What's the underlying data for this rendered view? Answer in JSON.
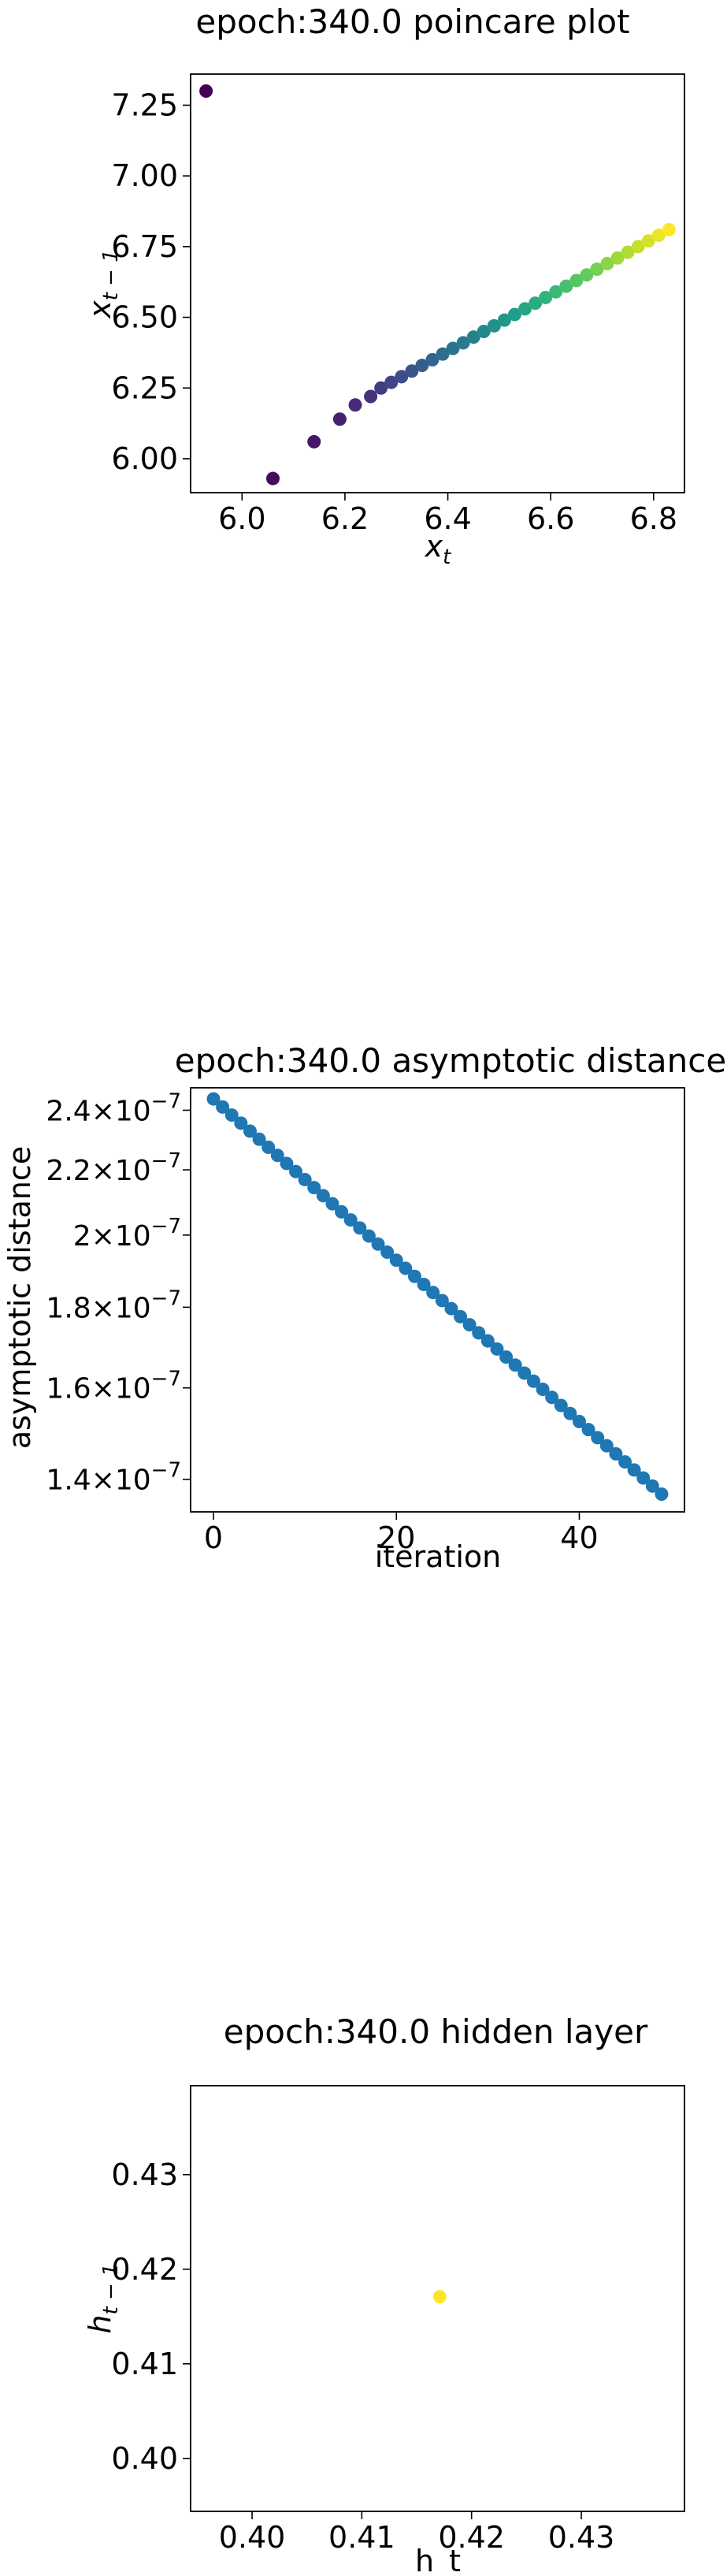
{
  "chart_data": [
    {
      "type": "scatter",
      "title": "epoch:340.0 poincare plot",
      "xlabel": "x",
      "xlabel_sub": "t",
      "ylabel": "x",
      "ylabel_sub": "t − 1",
      "xlim": [
        5.9,
        6.86
      ],
      "ylim": [
        5.88,
        7.36
      ],
      "xticks": [
        6.0,
        6.2,
        6.4,
        6.6,
        6.8
      ],
      "xtick_labels": [
        "6.0",
        "6.2",
        "6.4",
        "6.6",
        "6.8"
      ],
      "yticks": [
        6.0,
        6.25,
        6.5,
        6.75,
        7.0,
        7.25
      ],
      "ytick_labels": [
        "6.00",
        "6.25",
        "6.50",
        "6.75",
        "7.00",
        "7.25"
      ],
      "colormap": "viridis",
      "grid": false,
      "x": [
        5.93,
        6.06,
        6.14,
        6.19,
        6.22,
        6.25,
        6.27,
        6.29,
        6.31,
        6.33,
        6.35,
        6.37,
        6.39,
        6.41,
        6.43,
        6.45,
        6.47,
        6.49,
        6.51,
        6.53,
        6.55,
        6.57,
        6.59,
        6.61,
        6.63,
        6.65,
        6.67,
        6.69,
        6.71,
        6.73,
        6.75,
        6.77,
        6.79,
        6.81,
        6.83
      ],
      "y": [
        7.3,
        5.93,
        6.06,
        6.14,
        6.19,
        6.22,
        6.25,
        6.27,
        6.29,
        6.31,
        6.33,
        6.35,
        6.37,
        6.39,
        6.41,
        6.43,
        6.45,
        6.47,
        6.49,
        6.51,
        6.53,
        6.55,
        6.57,
        6.59,
        6.61,
        6.63,
        6.65,
        6.67,
        6.69,
        6.71,
        6.73,
        6.75,
        6.77,
        6.79,
        6.81
      ]
    },
    {
      "type": "scatter",
      "title": "epoch:340.0 asymptotic distance",
      "xlabel": "iteration",
      "ylabel": "asymptotic distance",
      "yscale": "log",
      "xlim": [
        -2.5,
        51.5
      ],
      "ylim": [
        1.335e-07,
        2.48e-07
      ],
      "xticks": [
        0,
        20,
        40
      ],
      "xtick_labels": [
        "0",
        "20",
        "40"
      ],
      "ytick_labels": [
        {
          "value": 2.4e-07,
          "mantissa": "2.4",
          "base": "×10",
          "exp": "−7"
        },
        {
          "value": 2.2e-07,
          "mantissa": "2.2",
          "base": "×10",
          "exp": "−7"
        },
        {
          "value": 2e-07,
          "mantissa": "2",
          "base": "×10",
          "exp": "−7"
        },
        {
          "value": 1.8e-07,
          "mantissa": "1.8",
          "base": "×10",
          "exp": "−7"
        },
        {
          "value": 1.6e-07,
          "mantissa": "1.6",
          "base": "×10",
          "exp": "−7"
        },
        {
          "value": 1.4e-07,
          "mantissa": "1.4",
          "base": "×10",
          "exp": "−7"
        }
      ],
      "color": "#1f77b4",
      "grid": false,
      "x": [
        0,
        1,
        2,
        3,
        4,
        5,
        6,
        7,
        8,
        9,
        10,
        11,
        12,
        13,
        14,
        15,
        16,
        17,
        18,
        19,
        20,
        21,
        22,
        23,
        24,
        25,
        26,
        27,
        28,
        29,
        30,
        31,
        32,
        33,
        34,
        35,
        36,
        37,
        38,
        39,
        40,
        41,
        42,
        43,
        44,
        45,
        46,
        47,
        48,
        49
      ],
      "y_first": 2.44e-07,
      "y_last": 1.37e-07
    },
    {
      "type": "scatter",
      "title": "epoch:340.0 hidden layer",
      "xlabel": "h_t",
      "ylabel": "h",
      "ylabel_sub": "t − 1",
      "xlim": [
        0.3944,
        0.4394
      ],
      "ylim": [
        0.3944,
        0.4394
      ],
      "xticks": [
        0.4,
        0.41,
        0.42,
        0.43
      ],
      "xtick_labels": [
        "0.40",
        "0.41",
        "0.42",
        "0.43"
      ],
      "yticks": [
        0.4,
        0.41,
        0.42,
        0.43
      ],
      "ytick_labels": [
        "0.40",
        "0.41",
        "0.42",
        "0.43"
      ],
      "color": "#fde725",
      "grid": false,
      "x": [
        0.4171
      ],
      "y": [
        0.4171
      ]
    }
  ]
}
